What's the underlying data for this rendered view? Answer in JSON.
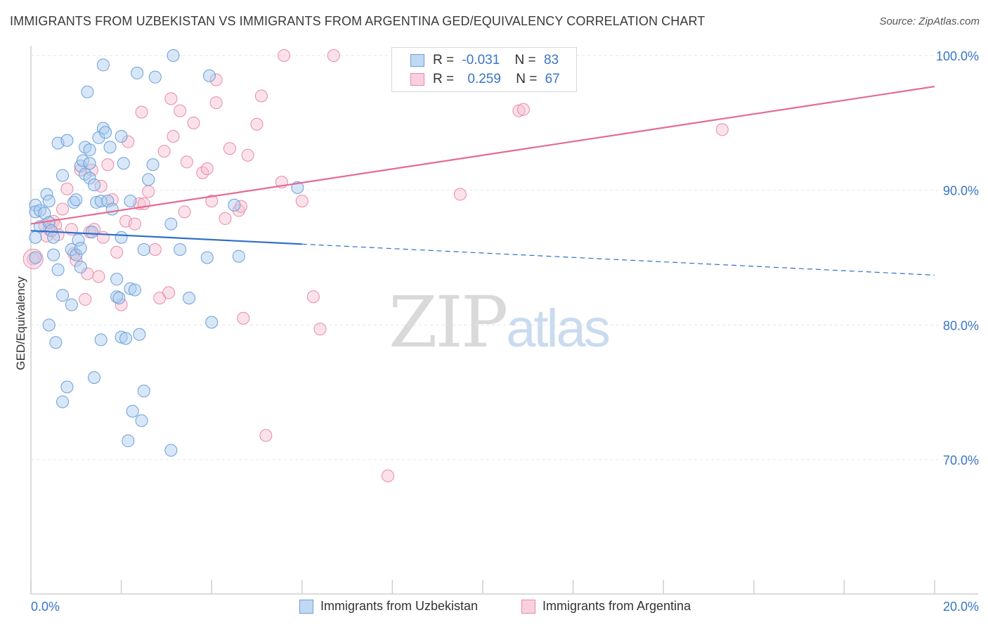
{
  "title": "IMMIGRANTS FROM UZBEKISTAN VS IMMIGRANTS FROM ARGENTINA GED/EQUIVALENCY CORRELATION CHART",
  "source": "Source: ZipAtlas.com",
  "watermark": {
    "zip": "ZIP",
    "atlas": "atlas"
  },
  "legend": {
    "uzbekistan": {
      "r_label": "R =",
      "r_value": "-0.031",
      "n_label": "N =",
      "n_value": "83"
    },
    "argentina": {
      "r_label": "R =",
      "r_value": "0.259",
      "n_label": "N =",
      "n_value": "67"
    }
  },
  "bottom_legend": [
    "Immigrants from Uzbekistan",
    "Immigrants from Argentina"
  ],
  "colors": {
    "uzbekistan_fill": "#a9c9ef",
    "uzbekistan_stroke": "#6a9fd8",
    "uzbekistan_line": "#2f6fc8",
    "argentina_fill": "#f7bfd1",
    "argentina_stroke": "#e98aa8",
    "argentina_line": "#e36b94",
    "axis_text": "#3a75c4",
    "grid": "#e6e6e6"
  },
  "chart_data": {
    "type": "scatter",
    "title": "IMMIGRANTS FROM UZBEKISTAN VS IMMIGRANTS FROM ARGENTINA GED/EQUIVALENCY CORRELATION CHART",
    "xlabel": "",
    "ylabel": "GED/Equivalency",
    "xlim": [
      0,
      20
    ],
    "ylim": [
      60,
      101
    ],
    "x_ticks": [
      "0.0%",
      "20.0%"
    ],
    "y_ticks": [
      "70.0%",
      "80.0%",
      "90.0%",
      "100.0%"
    ],
    "y_tick_values": [
      70,
      80,
      90,
      100
    ],
    "grid": true,
    "legend_position": "top-center",
    "series": [
      {
        "name": "Immigrants from Uzbekistan",
        "R": -0.031,
        "N": 83,
        "trend": {
          "x": [
            0,
            6
          ],
          "y": [
            87.0,
            86.0
          ],
          "dashed_to": [
            20,
            83.7
          ]
        },
        "points": [
          [
            0.1,
            88.9
          ],
          [
            0.1,
            88.4
          ],
          [
            0.2,
            88.5
          ],
          [
            0.3,
            88.3
          ],
          [
            0.35,
            89.7
          ],
          [
            0.2,
            87.3
          ],
          [
            0.4,
            87.6
          ],
          [
            0.4,
            89.2
          ],
          [
            0.45,
            87.0
          ],
          [
            0.5,
            86.5
          ],
          [
            0.5,
            85.2
          ],
          [
            0.1,
            86.5
          ],
          [
            0.1,
            85.0
          ],
          [
            0.6,
            84.1
          ],
          [
            0.6,
            93.5
          ],
          [
            0.7,
            91.1
          ],
          [
            0.7,
            82.2
          ],
          [
            0.8,
            93.7
          ],
          [
            0.9,
            85.6
          ],
          [
            0.9,
            81.5
          ],
          [
            0.8,
            75.4
          ],
          [
            0.7,
            74.3
          ],
          [
            0.4,
            80.0
          ],
          [
            0.55,
            78.7
          ],
          [
            0.95,
            89.1
          ],
          [
            1.0,
            89.3
          ],
          [
            1.0,
            85.2
          ],
          [
            1.05,
            86.3
          ],
          [
            1.1,
            84.3
          ],
          [
            1.1,
            85.7
          ],
          [
            1.1,
            91.8
          ],
          [
            1.15,
            92.2
          ],
          [
            1.2,
            91.2
          ],
          [
            1.2,
            93.2
          ],
          [
            1.25,
            97.3
          ],
          [
            1.3,
            92.0
          ],
          [
            1.3,
            90.9
          ],
          [
            1.3,
            93.0
          ],
          [
            1.35,
            86.9
          ],
          [
            1.4,
            76.1
          ],
          [
            1.4,
            90.4
          ],
          [
            1.45,
            89.1
          ],
          [
            1.5,
            93.9
          ],
          [
            1.55,
            89.2
          ],
          [
            1.55,
            78.9
          ],
          [
            1.6,
            99.3
          ],
          [
            1.6,
            94.6
          ],
          [
            1.65,
            94.3
          ],
          [
            1.7,
            89.2
          ],
          [
            1.75,
            93.2
          ],
          [
            1.8,
            88.6
          ],
          [
            1.9,
            83.4
          ],
          [
            1.9,
            82.1
          ],
          [
            1.95,
            82.0
          ],
          [
            2.0,
            86.5
          ],
          [
            2.0,
            94.0
          ],
          [
            2.0,
            79.1
          ],
          [
            2.05,
            92.0
          ],
          [
            2.1,
            79.0
          ],
          [
            2.15,
            71.4
          ],
          [
            2.2,
            89.2
          ],
          [
            2.2,
            82.7
          ],
          [
            2.25,
            73.6
          ],
          [
            2.3,
            82.6
          ],
          [
            2.35,
            98.7
          ],
          [
            2.4,
            79.3
          ],
          [
            2.45,
            72.9
          ],
          [
            2.5,
            75.1
          ],
          [
            2.5,
            85.6
          ],
          [
            2.6,
            90.8
          ],
          [
            2.7,
            91.9
          ],
          [
            2.75,
            98.4
          ],
          [
            3.1,
            70.7
          ],
          [
            3.1,
            87.5
          ],
          [
            3.15,
            100.0
          ],
          [
            3.3,
            85.6
          ],
          [
            3.5,
            82.0
          ],
          [
            3.9,
            85.0
          ],
          [
            4.0,
            80.2
          ],
          [
            3.95,
            98.5
          ],
          [
            4.5,
            88.9
          ],
          [
            4.6,
            85.1
          ],
          [
            5.9,
            90.2
          ]
        ]
      },
      {
        "name": "Immigrants from Argentina",
        "R": 0.259,
        "N": 67,
        "trend": {
          "x": [
            0,
            20
          ],
          "y": [
            87.5,
            97.7
          ]
        },
        "points": [
          [
            0.05,
            84.9
          ],
          [
            0.3,
            87.4
          ],
          [
            0.35,
            86.6
          ],
          [
            0.4,
            87.1
          ],
          [
            0.5,
            87.7
          ],
          [
            0.55,
            87.4
          ],
          [
            0.6,
            86.7
          ],
          [
            0.7,
            88.6
          ],
          [
            0.8,
            90.1
          ],
          [
            0.9,
            87.1
          ],
          [
            0.95,
            85.3
          ],
          [
            1.0,
            84.8
          ],
          [
            1.1,
            91.5
          ],
          [
            1.2,
            81.9
          ],
          [
            1.25,
            83.8
          ],
          [
            1.35,
            91.5
          ],
          [
            1.3,
            86.9
          ],
          [
            1.4,
            87.1
          ],
          [
            1.5,
            83.6
          ],
          [
            1.55,
            90.3
          ],
          [
            1.6,
            86.5
          ],
          [
            1.7,
            91.9
          ],
          [
            1.8,
            89.3
          ],
          [
            1.9,
            85.4
          ],
          [
            2.0,
            81.5
          ],
          [
            2.1,
            87.7
          ],
          [
            2.15,
            93.6
          ],
          [
            2.3,
            87.5
          ],
          [
            2.4,
            89.0
          ],
          [
            2.45,
            95.8
          ],
          [
            2.5,
            89.0
          ],
          [
            2.6,
            89.9
          ],
          [
            2.75,
            85.6
          ],
          [
            2.85,
            82.0
          ],
          [
            2.95,
            92.9
          ],
          [
            3.05,
            82.4
          ],
          [
            3.1,
            96.8
          ],
          [
            3.15,
            94.0
          ],
          [
            3.3,
            95.9
          ],
          [
            3.4,
            88.4
          ],
          [
            3.45,
            92.1
          ],
          [
            3.6,
            95.0
          ],
          [
            3.8,
            91.3
          ],
          [
            3.9,
            91.6
          ],
          [
            4.0,
            89.2
          ],
          [
            4.1,
            98.2
          ],
          [
            4.1,
            96.5
          ],
          [
            4.3,
            87.9
          ],
          [
            4.4,
            93.1
          ],
          [
            4.6,
            88.5
          ],
          [
            4.65,
            88.8
          ],
          [
            4.7,
            80.5
          ],
          [
            4.8,
            92.6
          ],
          [
            5.0,
            94.9
          ],
          [
            5.1,
            97.0
          ],
          [
            5.2,
            71.8
          ],
          [
            5.55,
            90.6
          ],
          [
            5.6,
            100.0
          ],
          [
            6.0,
            89.2
          ],
          [
            6.25,
            82.1
          ],
          [
            6.4,
            79.7
          ],
          [
            6.7,
            100.0
          ],
          [
            7.9,
            68.8
          ],
          [
            9.5,
            89.7
          ],
          [
            10.8,
            95.9
          ],
          [
            10.9,
            96.0
          ],
          [
            15.3,
            94.5
          ]
        ]
      }
    ]
  }
}
